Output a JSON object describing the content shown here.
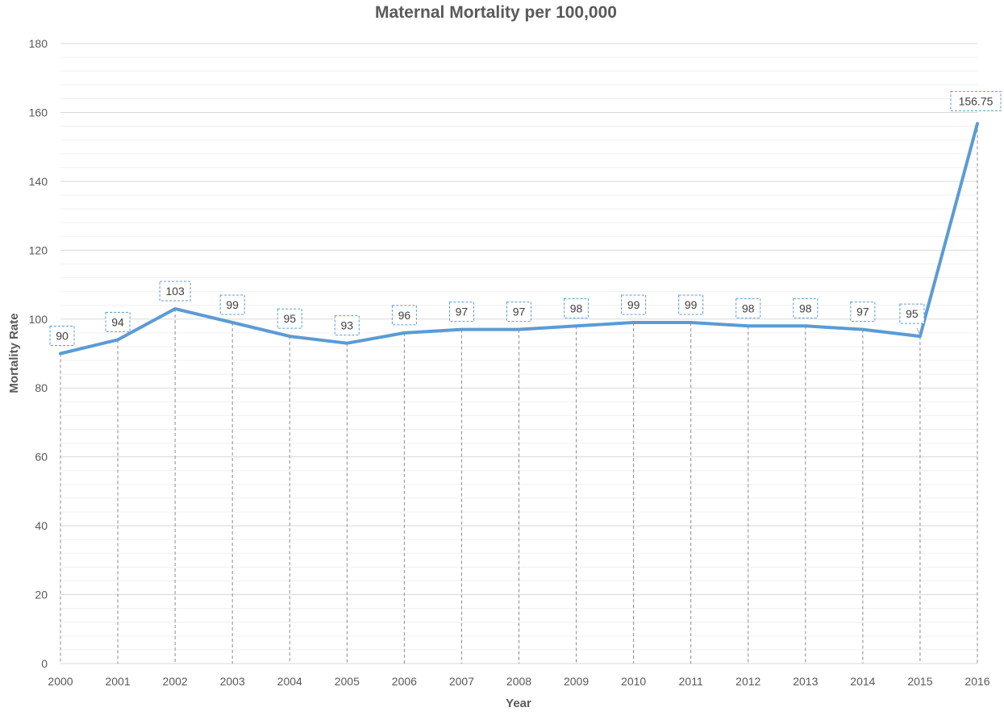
{
  "chart_data": {
    "type": "line",
    "title": "Maternal Mortality per 100,000",
    "xlabel": "Year",
    "ylabel": "Mortality Rate",
    "categories": [
      "2000",
      "2001",
      "2002",
      "2003",
      "2004",
      "2005",
      "2006",
      "2007",
      "2008",
      "2009",
      "2010",
      "2011",
      "2012",
      "2013",
      "2014",
      "2015",
      "2016"
    ],
    "series": [
      {
        "values": [
          90,
          94,
          103,
          99,
          95,
          93,
          96,
          97,
          97,
          98,
          99,
          99,
          98,
          98,
          97,
          95,
          156.75
        ],
        "labels": [
          "90",
          "94",
          "103",
          "99",
          "95",
          "93",
          "96",
          "97",
          "97",
          "98",
          "99",
          "99",
          "98",
          "98",
          "97",
          "95",
          "156.75"
        ]
      }
    ],
    "ylim": [
      0,
      180
    ],
    "y_ticks": [
      "0",
      "20",
      "40",
      "60",
      "80",
      "100",
      "120",
      "140",
      "160",
      "180"
    ],
    "y_tick_step": 20,
    "y_minor_step": 4,
    "grid": true,
    "drop_lines": true,
    "legend": "none",
    "line_color": "#5b9bd5"
  }
}
